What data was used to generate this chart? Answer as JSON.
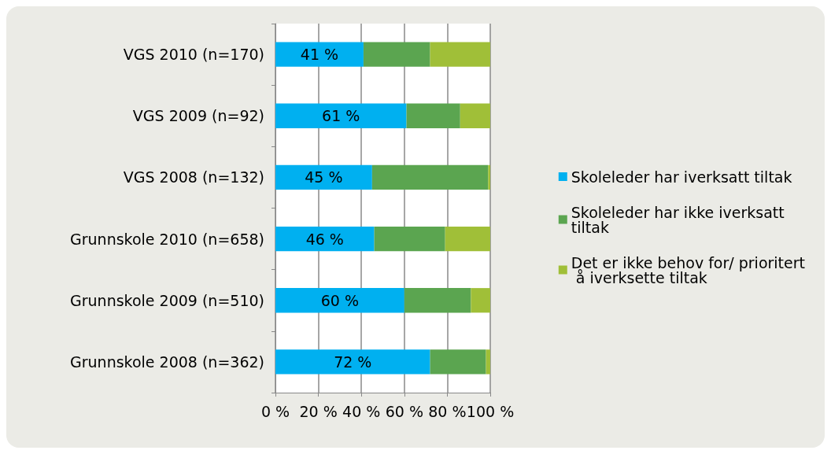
{
  "chart_data": {
    "type": "bar",
    "orientation": "horizontal",
    "stacked": true,
    "categories": [
      "VGS 2010 (n=170)",
      "VGS 2009 (n=92)",
      "VGS 2008 (n=132)",
      "Grunnskole 2010 (n=658)",
      "Grunnskole 2009 (n=510)",
      "Grunnskole 2008 (n=362)"
    ],
    "series": [
      {
        "name": "Skoleleder har iverksatt tiltak",
        "color": "#00b0f0",
        "values": [
          41,
          61,
          45,
          46,
          60,
          72
        ],
        "value_labels": [
          "41 %",
          "61 %",
          "45 %",
          "46 %",
          "60 %",
          "72 %"
        ]
      },
      {
        "name": "Skoleleder har ikke iverksatt tiltak",
        "color": "#5ba550",
        "values": [
          31,
          25,
          54,
          33,
          31,
          26
        ]
      },
      {
        "name": "Det er ikke behov for/ prioritert å iverksette tiltak",
        "color": "#a0bf38",
        "values": [
          28,
          14,
          1,
          21,
          9,
          2
        ]
      }
    ],
    "xlim": [
      0,
      100
    ],
    "xticks": [
      {
        "value": 0,
        "label": "0 %"
      },
      {
        "value": 20,
        "label": "20 %"
      },
      {
        "value": 40,
        "label": "40 %"
      },
      {
        "value": 60,
        "label": "60 %"
      },
      {
        "value": 80,
        "label": "80 %"
      },
      {
        "value": 100,
        "label": "100 %"
      }
    ],
    "grid": "x",
    "legend": "right"
  }
}
